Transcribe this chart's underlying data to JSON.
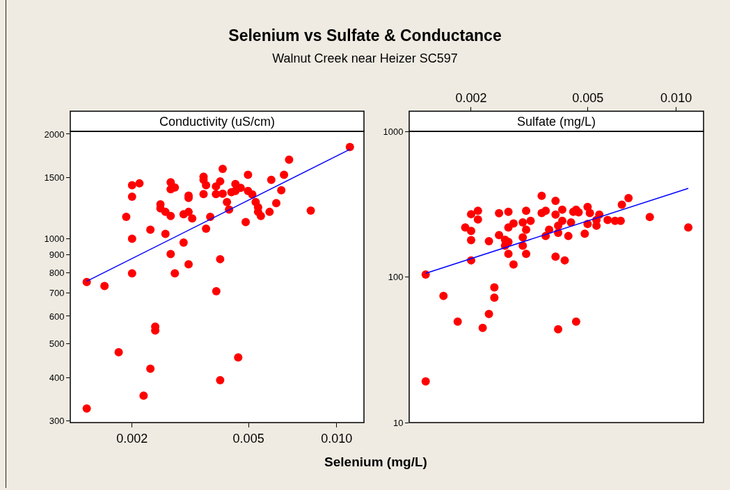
{
  "chart_data": [
    {
      "type": "scatter",
      "title": "Selenium vs Sulfate & Conductance",
      "subtitle": "Walnut Creek near Heizer SC597",
      "xlabel": "Selenium (mg/L)",
      "ylabel": "Conductivity (uS/cm)",
      "log": "xy",
      "grid": false,
      "xlim": [
        0.00123,
        0.0124
      ],
      "xticks": [
        {
          "value": 0.002,
          "label": "0.002"
        },
        {
          "value": 0.005,
          "label": "0.005"
        },
        {
          "value": 0.01,
          "label": "0.010"
        }
      ],
      "ylim": [
        297,
        2037
      ],
      "yticks": [
        300,
        400,
        500,
        600,
        700,
        800,
        900,
        1000,
        1500,
        2000
      ],
      "series": [
        {
          "type": "scatter",
          "marker": "circle",
          "color": "#ff0000",
          "x": [
            0.0014,
            0.00161,
            0.0014,
            0.0018,
            0.00219,
            0.00231,
            0.0024,
            0.0024,
            0.002,
            0.002,
            0.00191,
            0.002,
            0.002,
            0.00212,
            0.00231,
            0.0025,
            0.0025,
            0.0026,
            0.00271,
            0.0026,
            0.00271,
            0.00271,
            0.0028,
            0.00312,
            0.00312,
            0.003,
            0.00312,
            0.00321,
            0.003,
            0.00271,
            0.0028,
            0.00312,
            0.00351,
            0.00351,
            0.00358,
            0.00351,
            0.0037,
            0.00358,
            0.00387,
            0.004,
            0.00408,
            0.00387,
            0.00408,
            0.00422,
            0.00429,
            0.00437,
            0.00451,
            0.00451,
            0.0047,
            0.00498,
            0.00498,
            0.00515,
            0.00529,
            0.00539,
            0.00539,
            0.00551,
            0.00489,
            0.0059,
            0.00598,
            0.00622,
            0.00647,
            0.00661,
            0.00688,
            0.00816,
            0.0111,
            0.004,
            0.00388,
            0.00461,
            0.004
          ],
          "values": [
            752,
            733,
            326,
            473,
            355,
            424,
            560,
            546,
            797,
            1002,
            1157,
            1322,
            1427,
            1444,
            1063,
            1258,
            1224,
            1196,
            1164,
            1034,
            1455,
            1390,
            1405,
            1332,
            1312,
            1178,
            1196,
            1146,
            977,
            905,
            797,
            846,
            1510,
            1478,
            1427,
            1346,
            1157,
            1071,
            1416,
            1464,
            1590,
            1346,
            1348,
            1276,
            1215,
            1363,
            1438,
            1373,
            1403,
            1529,
            1373,
            1342,
            1276,
            1233,
            1196,
            1164,
            1118,
            1196,
            1478,
            1268,
            1380,
            1529,
            1689,
            1206,
            1837,
            875,
            708,
            457,
            393
          ]
        },
        {
          "type": "line",
          "color": "#0000ff",
          "x": [
            0.0014,
            0.0111
          ],
          "values": [
            756,
            1809
          ]
        }
      ]
    },
    {
      "type": "scatter",
      "ylabel": "Sulfate (mg/L)",
      "log": "xy",
      "grid": false,
      "xlim": [
        0.00123,
        0.0124
      ],
      "xticks": [
        {
          "value": 0.002,
          "label": "0.002"
        },
        {
          "value": 0.005,
          "label": "0.005"
        },
        {
          "value": 0.01,
          "label": "0.010"
        }
      ],
      "ylim": [
        10,
        1000
      ],
      "yticks": [
        10,
        100,
        1000
      ],
      "series": [
        {
          "type": "scatter",
          "marker": "circle",
          "color": "#ff0000",
          "x": [
            0.0014,
            0.0014,
            0.00161,
            0.0018,
            0.00219,
            0.0023,
            0.0024,
            0.0024,
            0.002,
            0.002,
            0.002,
            0.00191,
            0.002,
            0.00211,
            0.00211,
            0.0023,
            0.00249,
            0.00268,
            0.00268,
            0.00279,
            0.00249,
            0.00261,
            0.00268,
            0.00261,
            0.00268,
            0.00279,
            0.003,
            0.003,
            0.00308,
            0.00308,
            0.003,
            0.00308,
            0.00319,
            0.00348,
            0.00348,
            0.00359,
            0.00359,
            0.00369,
            0.00388,
            0.00388,
            0.00409,
            0.00409,
            0.00396,
            0.00396,
            0.00388,
            0.00417,
            0.00429,
            0.00438,
            0.00446,
            0.00456,
            0.00465,
            0.00499,
            0.00508,
            0.00499,
            0.00488,
            0.00535,
            0.00535,
            0.00547,
            0.00584,
            0.00619,
            0.00647,
            0.00653,
            0.00688,
            0.00813,
            0.011,
            0.00396,
            0.00456
          ],
          "values": [
            104,
            19.2,
            74.1,
            49.3,
            44.7,
            55.7,
            72.2,
            84.8,
            130,
            179,
            207,
            219,
            270,
            285,
            248,
            176,
            274,
            280,
            219,
            233,
            194,
            180,
            174,
            164,
            144,
            122,
            187,
            164,
            144,
            285,
            237,
            211,
            243,
            361,
            275,
            285,
            191,
            211,
            333,
            268,
            290,
            243,
            225,
            201,
            138,
            130,
            191,
            237,
            280,
            290,
            278,
            303,
            275,
            231,
            198,
            225,
            246,
            268,
            246,
            243,
            243,
            314,
            348,
            258,
            219,
            43.7,
            49.3
          ]
        },
        {
          "type": "line",
          "color": "#0000ff",
          "x": [
            0.0014,
            0.011
          ],
          "values": [
            106,
            406
          ]
        }
      ]
    }
  ]
}
